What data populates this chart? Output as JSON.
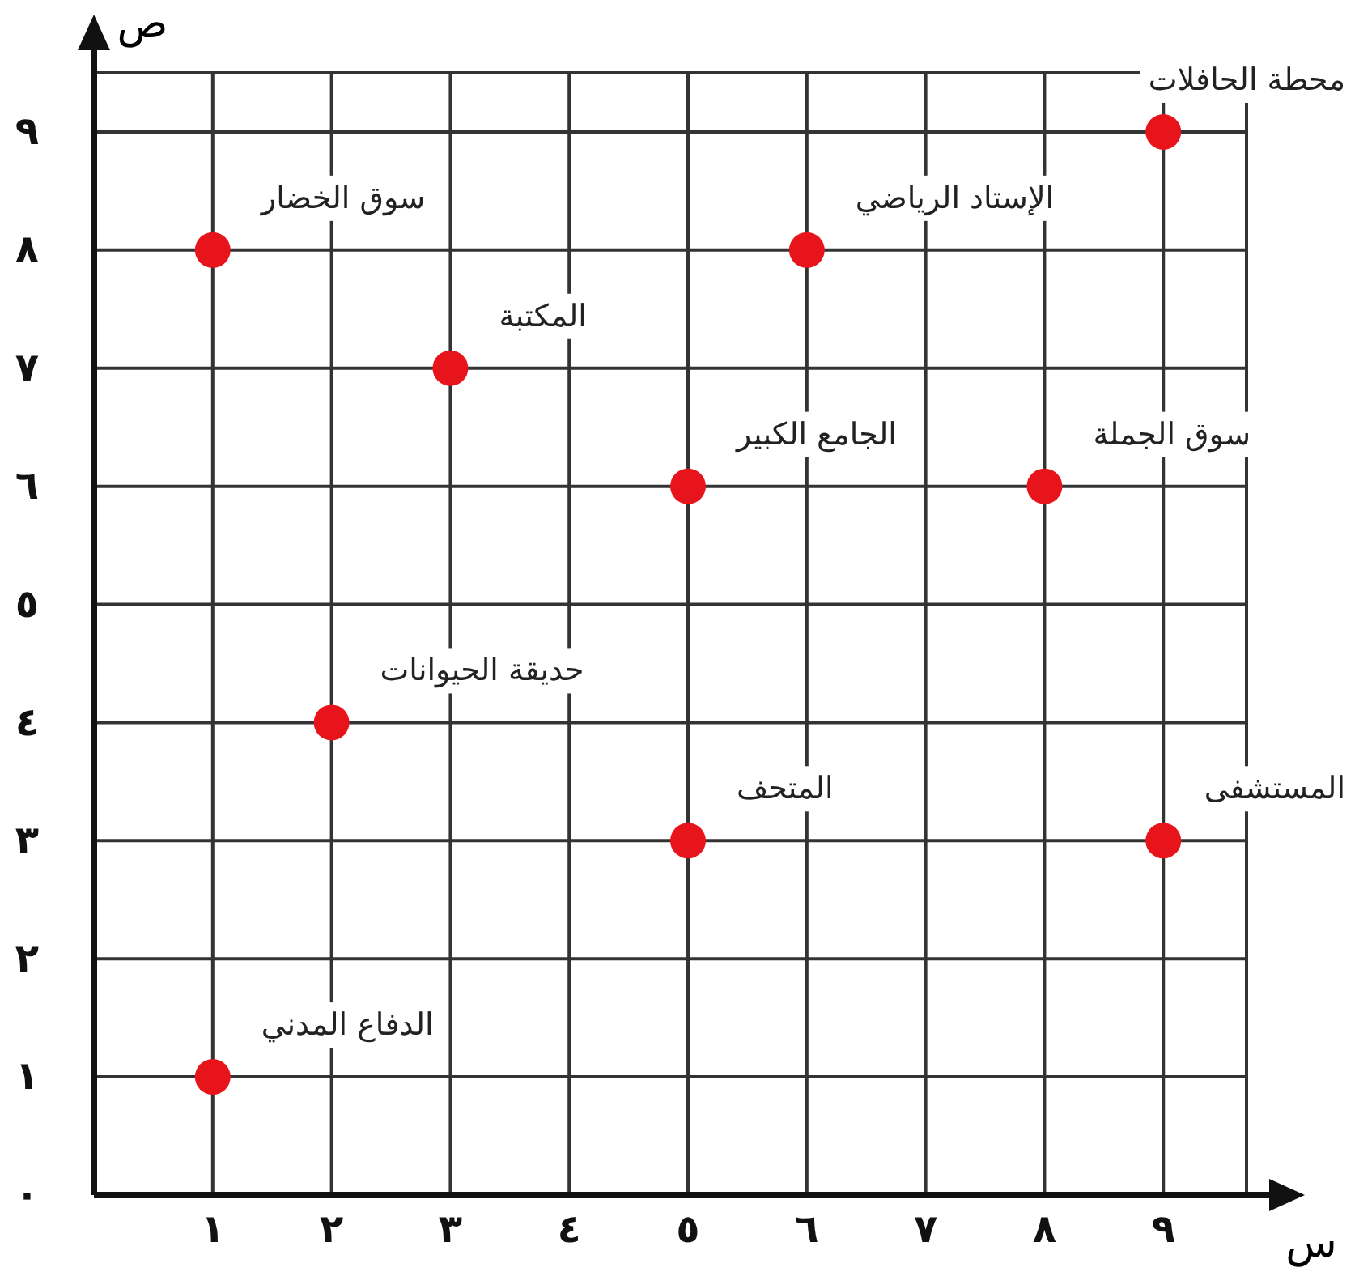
{
  "chart_data": {
    "type": "scatter",
    "xlabel": "س",
    "ylabel": "ص",
    "x": [
      1,
      3,
      6,
      9,
      5,
      8,
      2,
      5,
      9,
      1
    ],
    "values": [
      8,
      7,
      8,
      9,
      6,
      6,
      4,
      3,
      3,
      1
    ],
    "color": "#e8141c",
    "marker": "circle",
    "grid": true,
    "xlim": [
      0,
      9.7
    ],
    "ylim": [
      0,
      9.5
    ],
    "xticks": [
      {
        "value": 1,
        "label": "١"
      },
      {
        "value": 2,
        "label": "٢"
      },
      {
        "value": 3,
        "label": "٣"
      },
      {
        "value": 4,
        "label": "٤"
      },
      {
        "value": 5,
        "label": "٥"
      },
      {
        "value": 6,
        "label": "٦"
      },
      {
        "value": 7,
        "label": "٧"
      },
      {
        "value": 8,
        "label": "٨"
      },
      {
        "value": 9,
        "label": "٩"
      }
    ],
    "yticks": [
      {
        "value": 0,
        "label": "٠"
      },
      {
        "value": 1,
        "label": "١"
      },
      {
        "value": 2,
        "label": "٢"
      },
      {
        "value": 3,
        "label": "٣"
      },
      {
        "value": 4,
        "label": "٤"
      },
      {
        "value": 5,
        "label": "٥"
      },
      {
        "value": 6,
        "label": "٦"
      },
      {
        "value": 7,
        "label": "٧"
      },
      {
        "value": 8,
        "label": "٨"
      },
      {
        "value": 9,
        "label": "٩"
      }
    ],
    "annotations": [
      {
        "text": "سوق الخضار",
        "x": 1,
        "y": 8
      },
      {
        "text": "المكتبة",
        "x": 3,
        "y": 7
      },
      {
        "text": "الإستاد الرياضي",
        "x": 6,
        "y": 8
      },
      {
        "text": "محطة الحافلات",
        "x": 9,
        "y": 9
      },
      {
        "text": "الجامع الكبير",
        "x": 5,
        "y": 6
      },
      {
        "text": "سوق الجملة",
        "x": 8,
        "y": 6
      },
      {
        "text": "حديقة الحيوانات",
        "x": 2,
        "y": 4
      },
      {
        "text": "المتحف",
        "x": 5,
        "y": 3
      },
      {
        "text": "المستشفى",
        "x": 9,
        "y": 3
      },
      {
        "text": "الدفاع المدني",
        "x": 1,
        "y": 1
      }
    ]
  }
}
